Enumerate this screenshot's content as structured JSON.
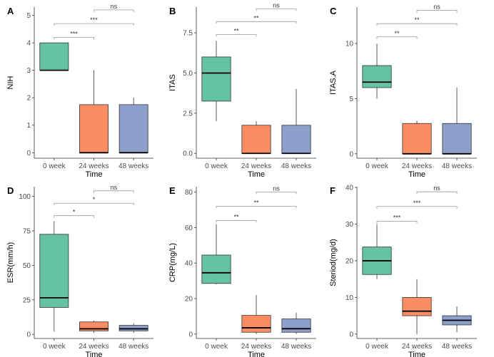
{
  "colors": {
    "week0": "#66c2a5",
    "week24": "#fc8d62",
    "week48": "#8da0cb",
    "axis": "#333333",
    "bracket": "#9a9a9a"
  },
  "chart_data": [
    {
      "type": "box",
      "panel": "A",
      "xlabel": "Time",
      "ylabel": "NIH",
      "categories": [
        "0 week",
        "24 weeks",
        "48 weeks"
      ],
      "yticks": [
        0,
        1,
        2,
        3,
        4,
        5
      ],
      "ylim": [
        -0.2,
        5.3
      ],
      "boxes": [
        {
          "q1": 3,
          "median": 3,
          "q3": 4,
          "wlo": 3,
          "whi": 4
        },
        {
          "q1": 0,
          "median": 0,
          "q3": 1.75,
          "wlo": 0,
          "whi": 3
        },
        {
          "q1": 0,
          "median": 0,
          "q3": 1.75,
          "wlo": 0,
          "whi": 2
        }
      ],
      "comparisons": [
        {
          "from": 0,
          "to": 1,
          "y": 4.2,
          "label": "***"
        },
        {
          "from": 0,
          "to": 2,
          "y": 4.7,
          "label": "***"
        },
        {
          "from": 1,
          "to": 2,
          "y": 5.2,
          "label": "ns"
        }
      ]
    },
    {
      "type": "box",
      "panel": "B",
      "xlabel": "Time",
      "ylabel": "ITAS",
      "categories": [
        "0 week",
        "24 weeks",
        "48 weeks"
      ],
      "yticks": [
        0.0,
        2.5,
        5.0,
        7.5
      ],
      "ytick_labels": [
        "0.0",
        "2.5",
        "5.0",
        "7.5"
      ],
      "ylim": [
        -0.3,
        9.1
      ],
      "boxes": [
        {
          "q1": 3.25,
          "median": 5,
          "q3": 6,
          "wlo": 2,
          "whi": 7
        },
        {
          "q1": 0,
          "median": 0,
          "q3": 1.75,
          "wlo": 0,
          "whi": 2
        },
        {
          "q1": 0,
          "median": 0,
          "q3": 1.75,
          "wlo": 0,
          "whi": 4
        }
      ],
      "comparisons": [
        {
          "from": 0,
          "to": 1,
          "y": 7.4,
          "label": "**"
        },
        {
          "from": 0,
          "to": 2,
          "y": 8.2,
          "label": "**"
        },
        {
          "from": 1,
          "to": 2,
          "y": 9.0,
          "label": "ns"
        }
      ]
    },
    {
      "type": "box",
      "panel": "C",
      "xlabel": "Time",
      "ylabel": "ITAS.A",
      "categories": [
        "0 week",
        "24 weeks",
        "48 weeks"
      ],
      "yticks": [
        0,
        5,
        10
      ],
      "ylim": [
        -0.4,
        13.3
      ],
      "boxes": [
        {
          "q1": 6,
          "median": 6.5,
          "q3": 8,
          "wlo": 5,
          "whi": 10
        },
        {
          "q1": 0,
          "median": 0,
          "q3": 2.75,
          "wlo": 0,
          "whi": 3
        },
        {
          "q1": 0,
          "median": 0,
          "q3": 2.75,
          "wlo": 0,
          "whi": 6
        }
      ],
      "comparisons": [
        {
          "from": 0,
          "to": 1,
          "y": 10.6,
          "label": "**"
        },
        {
          "from": 0,
          "to": 2,
          "y": 11.8,
          "label": "**"
        },
        {
          "from": 1,
          "to": 2,
          "y": 13.0,
          "label": "ns"
        }
      ]
    },
    {
      "type": "box",
      "panel": "D",
      "xlabel": "Time",
      "ylabel": "ESR(mm/h)",
      "categories": [
        "0 week",
        "24 weeks",
        "48 weeks"
      ],
      "yticks": [
        0,
        25,
        50,
        75,
        100
      ],
      "ylim": [
        -3,
        107
      ],
      "boxes": [
        {
          "q1": 19.5,
          "median": 26.5,
          "q3": 72.5,
          "wlo": 2,
          "whi": 82
        },
        {
          "q1": 2.5,
          "median": 4,
          "q3": 9,
          "wlo": 1,
          "whi": 10
        },
        {
          "q1": 2.5,
          "median": 4,
          "q3": 6.5,
          "wlo": 1,
          "whi": 8
        }
      ],
      "comparisons": [
        {
          "from": 0,
          "to": 1,
          "y": 86,
          "label": "*"
        },
        {
          "from": 0,
          "to": 2,
          "y": 95,
          "label": "*"
        },
        {
          "from": 1,
          "to": 2,
          "y": 104,
          "label": "ns"
        }
      ]
    },
    {
      "type": "box",
      "panel": "E",
      "xlabel": "Time",
      "ylabel": "CRP(mg/L)",
      "categories": [
        "0 week",
        "24 weeks",
        "48 weeks"
      ],
      "yticks": [
        0,
        20,
        40,
        60,
        80
      ],
      "ylim": [
        -2.5,
        83
      ],
      "boxes": [
        {
          "q1": 28.5,
          "median": 34.5,
          "q3": 44.5,
          "wlo": 28,
          "whi": 62
        },
        {
          "q1": 1,
          "median": 3.5,
          "q3": 10.5,
          "wlo": 0,
          "whi": 22
        },
        {
          "q1": 1,
          "median": 3,
          "q3": 8.5,
          "wlo": 0,
          "whi": 12
        }
      ],
      "comparisons": [
        {
          "from": 0,
          "to": 1,
          "y": 64,
          "label": "**"
        },
        {
          "from": 0,
          "to": 2,
          "y": 72,
          "label": "**"
        },
        {
          "from": 1,
          "to": 2,
          "y": 80,
          "label": "ns"
        }
      ]
    },
    {
      "type": "box",
      "panel": "F",
      "xlabel": "Time",
      "ylabel": "Steriod(mg/d)",
      "categories": [
        "0 week",
        "24 weeks",
        "48 weeks"
      ],
      "yticks": [
        0,
        10,
        20,
        30,
        40
      ],
      "ylim": [
        -1.2,
        40.2
      ],
      "boxes": [
        {
          "q1": 16.25,
          "median": 20,
          "q3": 23.75,
          "wlo": 15,
          "whi": 30
        },
        {
          "q1": 5,
          "median": 6.25,
          "q3": 10,
          "wlo": 0,
          "whi": 15
        },
        {
          "q1": 2.5,
          "median": 3.75,
          "q3": 5,
          "wlo": 0.5,
          "whi": 7.5
        }
      ],
      "comparisons": [
        {
          "from": 0,
          "to": 1,
          "y": 30.8,
          "label": "***"
        },
        {
          "from": 0,
          "to": 2,
          "y": 34.8,
          "label": "***"
        },
        {
          "from": 1,
          "to": 2,
          "y": 38.8,
          "label": "ns"
        }
      ]
    }
  ]
}
